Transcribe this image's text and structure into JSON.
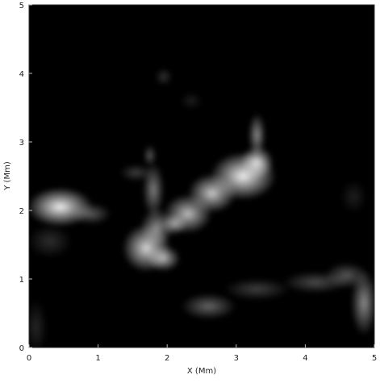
{
  "chart_data": {
    "type": "heatmap",
    "title": "",
    "xlabel": "X (Mm)",
    "ylabel": "Y (Mm)",
    "xlim": [
      0,
      5
    ],
    "ylim": [
      0,
      5
    ],
    "xticks": [
      "0",
      "1",
      "2",
      "3",
      "4",
      "5"
    ],
    "yticks": [
      "0",
      "1",
      "2",
      "3",
      "4",
      "5"
    ],
    "grid": false,
    "colormap": "grayscale",
    "background": "#000000",
    "features": [
      {
        "x": 0.45,
        "y": 2.05,
        "sx": 0.3,
        "sy": 0.18,
        "intensity": 0.95
      },
      {
        "x": 0.9,
        "y": 1.95,
        "sx": 0.18,
        "sy": 0.1,
        "intensity": 0.35
      },
      {
        "x": 1.7,
        "y": 1.45,
        "sx": 0.22,
        "sy": 0.22,
        "intensity": 0.85
      },
      {
        "x": 1.95,
        "y": 1.3,
        "sx": 0.15,
        "sy": 0.12,
        "intensity": 0.7
      },
      {
        "x": 1.85,
        "y": 1.75,
        "sx": 0.15,
        "sy": 0.18,
        "intensity": 0.55
      },
      {
        "x": 1.8,
        "y": 2.3,
        "sx": 0.1,
        "sy": 0.25,
        "intensity": 0.5
      },
      {
        "x": 1.75,
        "y": 2.8,
        "sx": 0.06,
        "sy": 0.1,
        "intensity": 0.35
      },
      {
        "x": 2.3,
        "y": 1.95,
        "sx": 0.22,
        "sy": 0.18,
        "intensity": 0.75
      },
      {
        "x": 2.65,
        "y": 2.25,
        "sx": 0.22,
        "sy": 0.18,
        "intensity": 0.8
      },
      {
        "x": 3.1,
        "y": 2.5,
        "sx": 0.3,
        "sy": 0.22,
        "intensity": 0.95
      },
      {
        "x": 3.3,
        "y": 2.7,
        "sx": 0.15,
        "sy": 0.15,
        "intensity": 0.85
      },
      {
        "x": 3.3,
        "y": 3.1,
        "sx": 0.08,
        "sy": 0.2,
        "intensity": 0.55
      },
      {
        "x": 2.1,
        "y": 1.8,
        "sx": 0.12,
        "sy": 0.1,
        "intensity": 0.6
      },
      {
        "x": 2.6,
        "y": 0.6,
        "sx": 0.25,
        "sy": 0.12,
        "intensity": 0.4
      },
      {
        "x": 3.3,
        "y": 0.85,
        "sx": 0.3,
        "sy": 0.1,
        "intensity": 0.25
      },
      {
        "x": 4.15,
        "y": 0.95,
        "sx": 0.3,
        "sy": 0.1,
        "intensity": 0.3
      },
      {
        "x": 4.85,
        "y": 0.65,
        "sx": 0.12,
        "sy": 0.3,
        "intensity": 0.55
      },
      {
        "x": 4.6,
        "y": 1.05,
        "sx": 0.2,
        "sy": 0.12,
        "intensity": 0.35
      },
      {
        "x": 0.3,
        "y": 1.55,
        "sx": 0.2,
        "sy": 0.15,
        "intensity": 0.18
      },
      {
        "x": 0.1,
        "y": 0.3,
        "sx": 0.1,
        "sy": 0.25,
        "intensity": 0.15
      },
      {
        "x": 4.7,
        "y": 2.2,
        "sx": 0.12,
        "sy": 0.15,
        "intensity": 0.12
      },
      {
        "x": 1.95,
        "y": 3.95,
        "sx": 0.08,
        "sy": 0.08,
        "intensity": 0.2
      },
      {
        "x": 2.35,
        "y": 3.6,
        "sx": 0.1,
        "sy": 0.08,
        "intensity": 0.12
      },
      {
        "x": 1.55,
        "y": 2.55,
        "sx": 0.15,
        "sy": 0.08,
        "intensity": 0.25
      }
    ]
  }
}
